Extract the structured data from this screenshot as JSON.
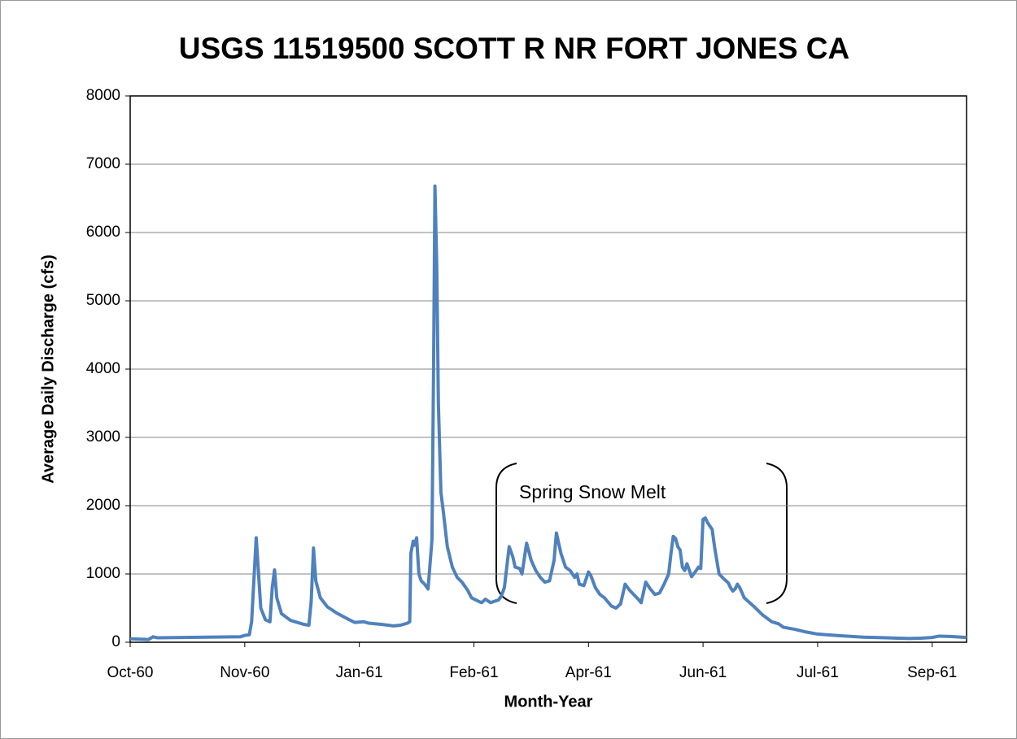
{
  "chart_data": {
    "type": "line",
    "title": "USGS 11519500 SCOTT R NR FORT JONES CA",
    "x_label": "Month-Year",
    "y_label": "Average Daily Discharge (cfs)",
    "annotation": "Spring Snow Melt",
    "xlim": [
      0,
      365
    ],
    "xticks": [
      {
        "value": 0,
        "label": "Oct-60"
      },
      {
        "value": 50,
        "label": "Nov-60"
      },
      {
        "value": 100,
        "label": "Jan-61"
      },
      {
        "value": 150,
        "label": "Feb-61"
      },
      {
        "value": 200,
        "label": "Apr-61"
      },
      {
        "value": 250,
        "label": "Jun-61"
      },
      {
        "value": 300,
        "label": "Jul-61"
      },
      {
        "value": 350,
        "label": "Sep-61"
      }
    ],
    "ylim": [
      0,
      8000
    ],
    "yticks": [
      0,
      1000,
      2000,
      3000,
      4000,
      5000,
      6000,
      7000,
      8000
    ],
    "grid": true,
    "x": [
      0,
      8,
      10,
      12,
      48,
      50,
      52,
      53,
      55,
      57,
      59,
      61,
      62,
      63,
      64,
      66,
      70,
      76,
      78,
      79,
      80,
      81,
      83,
      86,
      90,
      95,
      98,
      102,
      104,
      110,
      115,
      118,
      121,
      122,
      122.5,
      123.5,
      124,
      125,
      126,
      127,
      128.5,
      130,
      131.7,
      132.4,
      133,
      133.8,
      134.5,
      135.6,
      136.7,
      138.4,
      140.6,
      142.7,
      144.8,
      147.3,
      149,
      152,
      153.4,
      155,
      157.3,
      159,
      160.8,
      162,
      163.3,
      165.4,
      167,
      168,
      170,
      171,
      173,
      175,
      177,
      179,
      181,
      183,
      185,
      186,
      188,
      190,
      192,
      194,
      195,
      196,
      198,
      200,
      201,
      203,
      205,
      207,
      210,
      212,
      214,
      216,
      218,
      222,
      223,
      225,
      227,
      229,
      231,
      233,
      235,
      236,
      237,
      238,
      239,
      240,
      241,
      242,
      243,
      245,
      247,
      248,
      249,
      250,
      251,
      252,
      254,
      255,
      256,
      257,
      259,
      261,
      262,
      263,
      264,
      265,
      266,
      268,
      272,
      276,
      280,
      283,
      285,
      290,
      295,
      300,
      310,
      320,
      330,
      335,
      340,
      345,
      350,
      353,
      358,
      365
    ],
    "series": [
      {
        "name": "Discharge",
        "color": "#4f81bd",
        "values": [
          50,
          40,
          80,
          65,
          80,
          100,
          110,
          300,
          1530,
          500,
          330,
          300,
          800,
          1060,
          650,
          420,
          320,
          260,
          250,
          600,
          1380,
          900,
          650,
          520,
          430,
          340,
          290,
          300,
          280,
          260,
          240,
          250,
          280,
          300,
          1300,
          1480,
          1420,
          1530,
          1000,
          900,
          850,
          780,
          1500,
          4000,
          6680,
          5500,
          3500,
          2200,
          1900,
          1400,
          1100,
          950,
          880,
          760,
          650,
          600,
          580,
          630,
          580,
          600,
          620,
          680,
          800,
          1400,
          1250,
          1100,
          1080,
          1000,
          1450,
          1200,
          1050,
          950,
          880,
          900,
          1200,
          1600,
          1300,
          1100,
          1050,
          950,
          1000,
          850,
          830,
          1030,
          980,
          800,
          700,
          650,
          530,
          500,
          560,
          850,
          760,
          620,
          580,
          880,
          780,
          700,
          720,
          850,
          1000,
          1300,
          1550,
          1520,
          1400,
          1350,
          1100,
          1050,
          1150,
          960,
          1050,
          1100,
          1080,
          1800,
          1820,
          1750,
          1650,
          1400,
          1200,
          1000,
          930,
          870,
          800,
          750,
          780,
          850,
          800,
          650,
          530,
          400,
          300,
          270,
          220,
          190,
          150,
          120,
          95,
          75,
          65,
          60,
          55,
          60,
          70,
          90,
          85,
          70
        ]
      }
    ]
  }
}
